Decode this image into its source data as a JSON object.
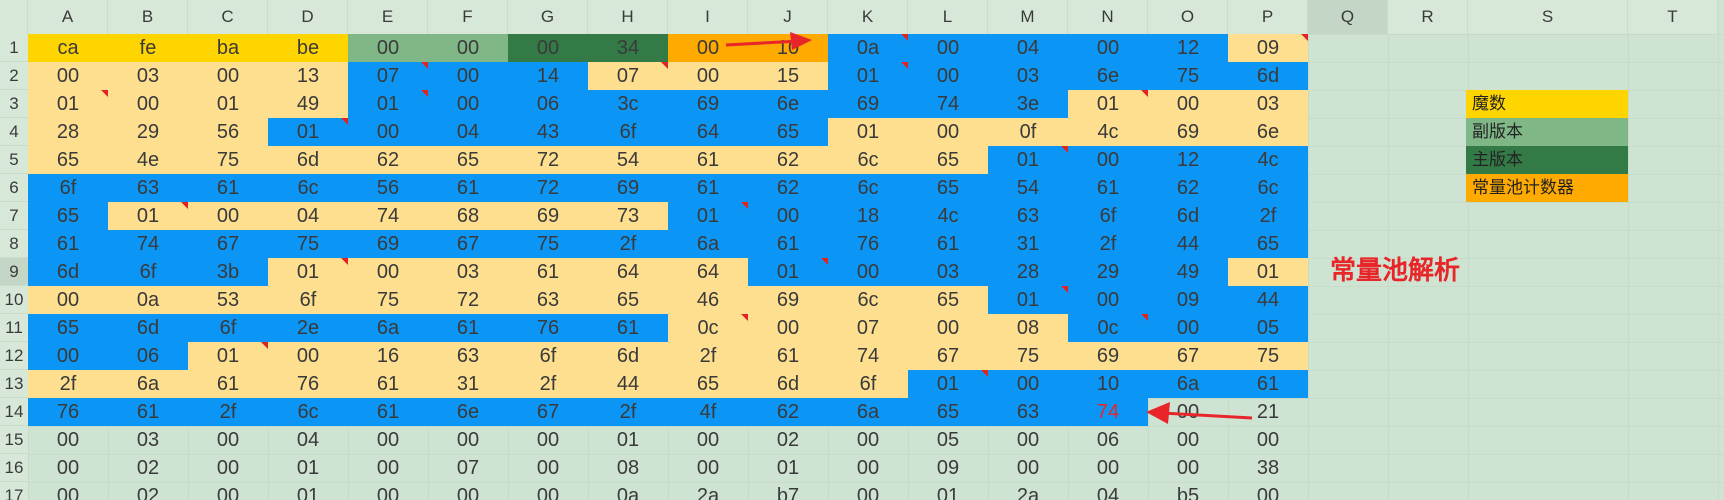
{
  "columns": [
    "A",
    "B",
    "C",
    "D",
    "E",
    "F",
    "G",
    "H",
    "I",
    "J",
    "K",
    "L",
    "M",
    "N",
    "O",
    "P",
    "Q",
    "R",
    "S",
    "T"
  ],
  "rows": [
    "1",
    "2",
    "3",
    "4",
    "5",
    "6",
    "7",
    "8",
    "9",
    "10",
    "11",
    "12",
    "13",
    "14",
    "15",
    "16",
    "17"
  ],
  "colors": {
    "yellow": "#ffd500",
    "light_green": "#7fb787",
    "dark_green": "#337a46",
    "orange": "#ffaa00",
    "blue": "#0b96f5",
    "beige": "#fddf8f",
    "sheet_bg": "#cfe3d3",
    "red": "#e8262a"
  },
  "grid": [
    [
      "ca",
      "fe",
      "ba",
      "be",
      "00",
      "00",
      "00",
      "34",
      "00",
      "10",
      "0a",
      "00",
      "04",
      "00",
      "12",
      "09"
    ],
    [
      "00",
      "03",
      "00",
      "13",
      "07",
      "00",
      "14",
      "07",
      "00",
      "15",
      "01",
      "00",
      "03",
      "6e",
      "75",
      "6d"
    ],
    [
      "01",
      "00",
      "01",
      "49",
      "01",
      "00",
      "06",
      "3c",
      "69",
      "6e",
      "69",
      "74",
      "3e",
      "01",
      "00",
      "03"
    ],
    [
      "28",
      "29",
      "56",
      "01",
      "00",
      "04",
      "43",
      "6f",
      "64",
      "65",
      "01",
      "00",
      "0f",
      "4c",
      "69",
      "6e"
    ],
    [
      "65",
      "4e",
      "75",
      "6d",
      "62",
      "65",
      "72",
      "54",
      "61",
      "62",
      "6c",
      "65",
      "01",
      "00",
      "12",
      "4c"
    ],
    [
      "6f",
      "63",
      "61",
      "6c",
      "56",
      "61",
      "72",
      "69",
      "61",
      "62",
      "6c",
      "65",
      "54",
      "61",
      "62",
      "6c"
    ],
    [
      "65",
      "01",
      "00",
      "04",
      "74",
      "68",
      "69",
      "73",
      "01",
      "00",
      "18",
      "4c",
      "63",
      "6f",
      "6d",
      "2f"
    ],
    [
      "61",
      "74",
      "67",
      "75",
      "69",
      "67",
      "75",
      "2f",
      "6a",
      "61",
      "76",
      "61",
      "31",
      "2f",
      "44",
      "65"
    ],
    [
      "6d",
      "6f",
      "3b",
      "01",
      "00",
      "03",
      "61",
      "64",
      "64",
      "01",
      "00",
      "03",
      "28",
      "29",
      "49",
      "01"
    ],
    [
      "00",
      "0a",
      "53",
      "6f",
      "75",
      "72",
      "63",
      "65",
      "46",
      "69",
      "6c",
      "65",
      "01",
      "00",
      "09",
      "44"
    ],
    [
      "65",
      "6d",
      "6f",
      "2e",
      "6a",
      "61",
      "76",
      "61",
      "0c",
      "00",
      "07",
      "00",
      "08",
      "0c",
      "00",
      "05"
    ],
    [
      "00",
      "06",
      "01",
      "00",
      "16",
      "63",
      "6f",
      "6d",
      "2f",
      "61",
      "74",
      "67",
      "75",
      "69",
      "67",
      "75"
    ],
    [
      "2f",
      "6a",
      "61",
      "76",
      "61",
      "31",
      "2f",
      "44",
      "65",
      "6d",
      "6f",
      "01",
      "00",
      "10",
      "6a",
      "61"
    ],
    [
      "76",
      "61",
      "2f",
      "6c",
      "61",
      "6e",
      "67",
      "2f",
      "4f",
      "62",
      "6a",
      "65",
      "63",
      "74",
      "00",
      "21"
    ],
    [
      "00",
      "03",
      "00",
      "04",
      "00",
      "00",
      "00",
      "01",
      "00",
      "02",
      "00",
      "05",
      "00",
      "06",
      "00",
      "00"
    ],
    [
      "00",
      "02",
      "00",
      "01",
      "00",
      "07",
      "00",
      "08",
      "00",
      "01",
      "00",
      "09",
      "00",
      "00",
      "00",
      "38"
    ],
    [
      "00",
      "02",
      "00",
      "01",
      "00",
      "00",
      "00",
      "0a",
      "2a",
      "b7",
      "00",
      "01",
      "2a",
      "04",
      "b5",
      "00"
    ]
  ],
  "fills": [
    [
      "Y",
      "Y",
      "Y",
      "Y",
      "G",
      "G",
      "D",
      "D",
      "O",
      "O",
      "B",
      "B",
      "B",
      "B",
      "B",
      "E"
    ],
    [
      "E",
      "E",
      "E",
      "E",
      "B",
      "B",
      "B",
      "E",
      "E",
      "E",
      "B",
      "B",
      "B",
      "B",
      "B",
      "B"
    ],
    [
      "E",
      "E",
      "E",
      "E",
      "B",
      "B",
      "B",
      "B",
      "B",
      "B",
      "B",
      "B",
      "B",
      "E",
      "E",
      "E"
    ],
    [
      "E",
      "E",
      "E",
      "B",
      "B",
      "B",
      "B",
      "B",
      "B",
      "B",
      "E",
      "E",
      "E",
      "E",
      "E",
      "E"
    ],
    [
      "E",
      "E",
      "E",
      "E",
      "E",
      "E",
      "E",
      "E",
      "E",
      "E",
      "E",
      "E",
      "B",
      "B",
      "B",
      "B"
    ],
    [
      "B",
      "B",
      "B",
      "B",
      "B",
      "B",
      "B",
      "B",
      "B",
      "B",
      "B",
      "B",
      "B",
      "B",
      "B",
      "B"
    ],
    [
      "B",
      "E",
      "E",
      "E",
      "E",
      "E",
      "E",
      "E",
      "B",
      "B",
      "B",
      "B",
      "B",
      "B",
      "B",
      "B"
    ],
    [
      "B",
      "B",
      "B",
      "B",
      "B",
      "B",
      "B",
      "B",
      "B",
      "B",
      "B",
      "B",
      "B",
      "B",
      "B",
      "B"
    ],
    [
      "B",
      "B",
      "B",
      "E",
      "E",
      "E",
      "E",
      "E",
      "E",
      "B",
      "B",
      "B",
      "B",
      "B",
      "B",
      "E"
    ],
    [
      "E",
      "E",
      "E",
      "E",
      "E",
      "E",
      "E",
      "E",
      "E",
      "E",
      "E",
      "E",
      "B",
      "B",
      "B",
      "B"
    ],
    [
      "B",
      "B",
      "B",
      "B",
      "B",
      "B",
      "B",
      "B",
      "E",
      "E",
      "E",
      "E",
      "E",
      "B",
      "B",
      "B"
    ],
    [
      "B",
      "B",
      "E",
      "E",
      "E",
      "E",
      "E",
      "E",
      "E",
      "E",
      "E",
      "E",
      "E",
      "E",
      "E",
      "E"
    ],
    [
      "E",
      "E",
      "E",
      "E",
      "E",
      "E",
      "E",
      "E",
      "E",
      "E",
      "E",
      "B",
      "B",
      "B",
      "B",
      "B"
    ],
    [
      "B",
      "B",
      "B",
      "B",
      "B",
      "B",
      "B",
      "B",
      "B",
      "B",
      "B",
      "B",
      "B",
      "B",
      "N",
      "N"
    ]
  ],
  "legend": [
    {
      "label": "魔数",
      "color": "#ffd500"
    },
    {
      "label": "副版本",
      "color": "#7fb787"
    },
    {
      "label": "主版本",
      "color": "#337a46"
    },
    {
      "label": "常量池计数器",
      "color": "#ffaa00"
    }
  ],
  "annotation_title": "常量池解析"
}
